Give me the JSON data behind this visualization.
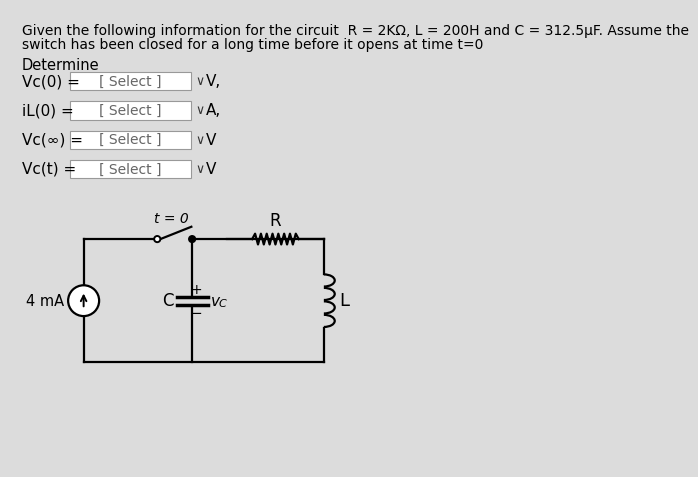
{
  "bg_color": "#dcdcdc",
  "title_text1": "Given the following information for the circuit  R = 2KΩ, L = 200H and C = 312.5μF. Assume the",
  "title_text2": "switch has been closed for a long time before it opens at time t=0",
  "determine_label": "Determine",
  "row1_label": "Vc(0) =",
  "row2_label": "iL(0) =",
  "row3_label": "Vc(∞) =",
  "row4_label": "Vc(t) =",
  "select_text": "[ Select ]",
  "unit1": "V,",
  "unit2": "A,",
  "unit3": "V",
  "unit4": "V",
  "box_border": "#999999",
  "current_source_label": "4 mA",
  "switch_label": "t = 0",
  "cap_label": "C",
  "vc_label": "v",
  "vc_sub": "C",
  "res_label": "R",
  "ind_label": "L"
}
